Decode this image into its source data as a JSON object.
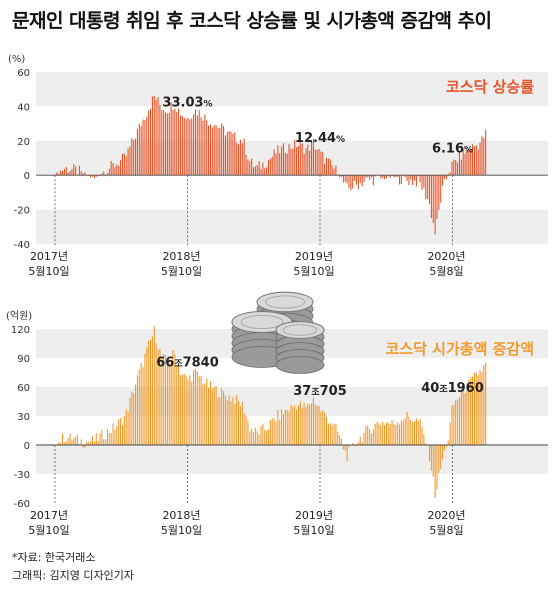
{
  "title": "문재인 대통령 취임 후 코스닥 상승률 및 시가총액 증감액 추이",
  "source": "*자료: 한국거래소",
  "credit": "그래픽: 김지영 디자인기자",
  "colors": {
    "top_series": "#e8542a",
    "bottom_series": "#f39a2b",
    "band": "#eeeeee",
    "axis": "#555555"
  },
  "coin_icon": "coin-stack-icon",
  "chart_data": [
    {
      "type": "bar",
      "unit": "(%)",
      "series_name": "코스닥 상승률",
      "ylim": [
        -40,
        60
      ],
      "yticks": [
        60,
        40,
        20,
        0,
        -20,
        -40
      ],
      "xticks": [
        {
          "line1": "2017년",
          "line2": "5월10일"
        },
        {
          "line1": "2018년",
          "line2": "5월10일"
        },
        {
          "line1": "2019년",
          "line2": "5월10일"
        },
        {
          "line1": "2020년",
          "line2": "5월8일"
        }
      ],
      "annotations": [
        {
          "num": "33.03",
          "suffix": "%",
          "year_index": 1.0,
          "value": 33.03
        },
        {
          "num": "12.44",
          "suffix": "%",
          "year_index": 2.0,
          "value": 12.44
        },
        {
          "num": "6.16",
          "suffix": "%",
          "year_index": 3.0,
          "value": 6.16
        }
      ],
      "series": [
        {
          "t": 0.0,
          "v": 0
        },
        {
          "t": 0.07,
          "v": 4
        },
        {
          "t": 0.15,
          "v": 3
        },
        {
          "t": 0.22,
          "v": 1
        },
        {
          "t": 0.3,
          "v": -2
        },
        {
          "t": 0.38,
          "v": 3
        },
        {
          "t": 0.45,
          "v": 6
        },
        {
          "t": 0.53,
          "v": 10
        },
        {
          "t": 0.6,
          "v": 22
        },
        {
          "t": 0.65,
          "v": 30
        },
        {
          "t": 0.7,
          "v": 38
        },
        {
          "t": 0.75,
          "v": 46
        },
        {
          "t": 0.8,
          "v": 40
        },
        {
          "t": 0.85,
          "v": 38
        },
        {
          "t": 0.9,
          "v": 42
        },
        {
          "t": 0.95,
          "v": 36
        },
        {
          "t": 1.0,
          "v": 33
        },
        {
          "t": 1.05,
          "v": 38
        },
        {
          "t": 1.1,
          "v": 36
        },
        {
          "t": 1.15,
          "v": 32
        },
        {
          "t": 1.2,
          "v": 30
        },
        {
          "t": 1.28,
          "v": 26
        },
        {
          "t": 1.35,
          "v": 22
        },
        {
          "t": 1.42,
          "v": 20
        },
        {
          "t": 1.47,
          "v": 8
        },
        {
          "t": 1.52,
          "v": 4
        },
        {
          "t": 1.6,
          "v": 8
        },
        {
          "t": 1.68,
          "v": 14
        },
        {
          "t": 1.75,
          "v": 16
        },
        {
          "t": 1.82,
          "v": 18
        },
        {
          "t": 1.9,
          "v": 15
        },
        {
          "t": 1.95,
          "v": 19
        },
        {
          "t": 2.0,
          "v": 12.4
        },
        {
          "t": 2.08,
          "v": 6
        },
        {
          "t": 2.14,
          "v": 1
        },
        {
          "t": 2.2,
          "v": -8
        },
        {
          "t": 2.27,
          "v": -6
        },
        {
          "t": 2.35,
          "v": -3
        },
        {
          "t": 2.45,
          "v": -2
        },
        {
          "t": 2.55,
          "v": -1
        },
        {
          "t": 2.65,
          "v": -3
        },
        {
          "t": 2.75,
          "v": -4
        },
        {
          "t": 2.82,
          "v": -15
        },
        {
          "t": 2.87,
          "v": -34
        },
        {
          "t": 2.92,
          "v": -10
        },
        {
          "t": 2.97,
          "v": 2
        },
        {
          "t": 3.0,
          "v": 6.2
        },
        {
          "t": 3.07,
          "v": 12
        },
        {
          "t": 3.14,
          "v": 16
        },
        {
          "t": 3.2,
          "v": 18
        },
        {
          "t": 3.25,
          "v": 24
        }
      ]
    },
    {
      "type": "bar",
      "unit": "(억원)",
      "series_name": "코스닥 시가총액 증감액",
      "ylim": [
        -60,
        120
      ],
      "yticks": [
        120,
        90,
        60,
        30,
        0,
        -30,
        -60
      ],
      "xticks": [
        {
          "line1": "2017년",
          "line2": "5월10일"
        },
        {
          "line1": "2018년",
          "line2": "5월10일"
        },
        {
          "line1": "2019년",
          "line2": "5월10일"
        },
        {
          "line1": "2020년",
          "line2": "5월8일"
        }
      ],
      "annotations": [
        {
          "a": "66",
          "jo": "조",
          "b": "7840",
          "year_index": 1.0,
          "value": 66.8
        },
        {
          "a": "37",
          "jo": "조",
          "b": "705",
          "year_index": 2.0,
          "value": 37.1
        },
        {
          "a": "40",
          "jo": "조",
          "b": "1960",
          "year_index": 3.0,
          "value": 40.2
        }
      ],
      "series": [
        {
          "t": 0.0,
          "v": 0
        },
        {
          "t": 0.07,
          "v": 8
        },
        {
          "t": 0.15,
          "v": 6
        },
        {
          "t": 0.22,
          "v": 3
        },
        {
          "t": 0.3,
          "v": 5
        },
        {
          "t": 0.38,
          "v": 12
        },
        {
          "t": 0.45,
          "v": 18
        },
        {
          "t": 0.53,
          "v": 30
        },
        {
          "t": 0.6,
          "v": 60
        },
        {
          "t": 0.65,
          "v": 80
        },
        {
          "t": 0.7,
          "v": 100
        },
        {
          "t": 0.75,
          "v": 118
        },
        {
          "t": 0.8,
          "v": 92
        },
        {
          "t": 0.85,
          "v": 85
        },
        {
          "t": 0.9,
          "v": 95
        },
        {
          "t": 0.95,
          "v": 75
        },
        {
          "t": 1.0,
          "v": 66.8
        },
        {
          "t": 1.05,
          "v": 75
        },
        {
          "t": 1.1,
          "v": 70
        },
        {
          "t": 1.15,
          "v": 62
        },
        {
          "t": 1.2,
          "v": 58
        },
        {
          "t": 1.28,
          "v": 52
        },
        {
          "t": 1.35,
          "v": 48
        },
        {
          "t": 1.42,
          "v": 40
        },
        {
          "t": 1.47,
          "v": 18
        },
        {
          "t": 1.52,
          "v": 12
        },
        {
          "t": 1.6,
          "v": 18
        },
        {
          "t": 1.68,
          "v": 30
        },
        {
          "t": 1.75,
          "v": 36
        },
        {
          "t": 1.82,
          "v": 42
        },
        {
          "t": 1.9,
          "v": 38
        },
        {
          "t": 1.95,
          "v": 48
        },
        {
          "t": 2.0,
          "v": 37.1
        },
        {
          "t": 2.08,
          "v": 24
        },
        {
          "t": 2.14,
          "v": 12
        },
        {
          "t": 2.2,
          "v": -12
        },
        {
          "t": 2.27,
          "v": 2
        },
        {
          "t": 2.35,
          "v": 14
        },
        {
          "t": 2.45,
          "v": 24
        },
        {
          "t": 2.55,
          "v": 22
        },
        {
          "t": 2.65,
          "v": 30
        },
        {
          "t": 2.75,
          "v": 24
        },
        {
          "t": 2.82,
          "v": -5
        },
        {
          "t": 2.87,
          "v": -52
        },
        {
          "t": 2.92,
          "v": -18
        },
        {
          "t": 2.97,
          "v": 8
        },
        {
          "t": 3.0,
          "v": 40.2
        },
        {
          "t": 3.07,
          "v": 55
        },
        {
          "t": 3.14,
          "v": 65
        },
        {
          "t": 3.2,
          "v": 75
        },
        {
          "t": 3.25,
          "v": 82
        }
      ]
    }
  ]
}
